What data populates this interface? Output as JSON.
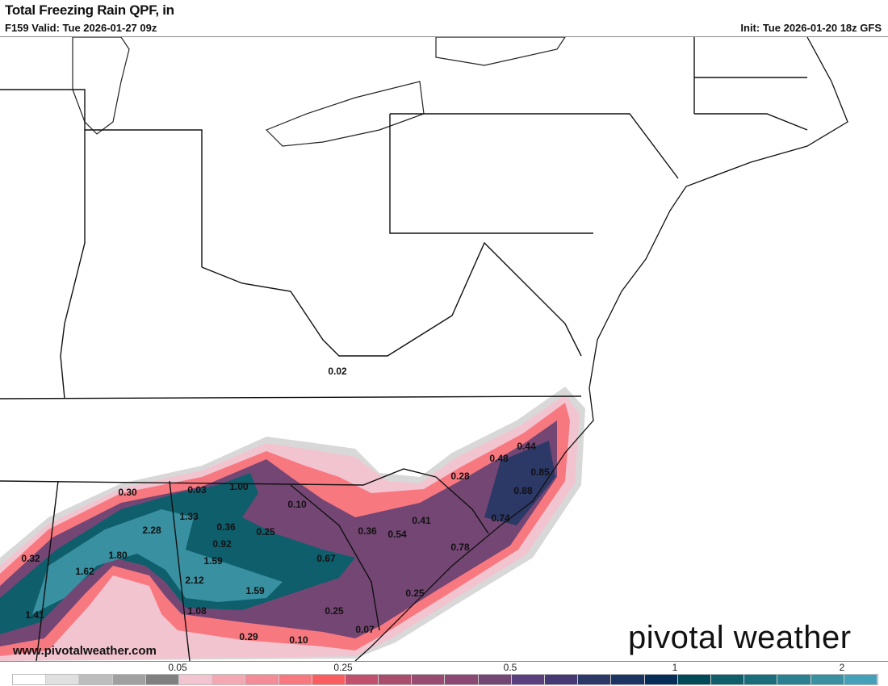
{
  "header": {
    "title": "Total Freezing Rain QPF, in",
    "valid": "F159 Valid: Tue 2026-01-27 09z",
    "init": "Init: Tue 2026-01-20 18z GFS"
  },
  "watermark": "www.pivotalweather.com",
  "logo": "pivotal weather",
  "colorbar": {
    "colors": [
      "#ffffff",
      "#e0e0e0",
      "#bdbdbd",
      "#a0a0a0",
      "#808080",
      "#f2c4d0",
      "#f4a8b4",
      "#f48c98",
      "#f87880",
      "#fa5c60",
      "#c0506e",
      "#a84e6c",
      "#984a70",
      "#8a4872",
      "#744674",
      "#5a3e7e",
      "#463872",
      "#2c3866",
      "#1c3462",
      "#062c58",
      "#004a58",
      "#0e5e6c",
      "#1a6e7c",
      "#2a8090",
      "#3890a0",
      "#44a0b8"
    ],
    "ticks": [
      "0.05",
      "0.25",
      "0.5",
      "1",
      "2"
    ]
  },
  "labels": [
    "0.02",
    "0.44",
    "0.48",
    "0.85",
    "0.28",
    "0.88",
    "0.30",
    "0.03",
    "1.00",
    "0.10",
    "0.74",
    "0.41",
    "1.33",
    "0.36",
    "0.25",
    "0.36",
    "0.54",
    "2.28",
    "0.92",
    "0.78",
    "0.32",
    "1.80",
    "0.67",
    "1.59",
    "1.62",
    "2.12",
    "1.59",
    "0.25",
    "1.08",
    "0.25",
    "1.41",
    "0.07",
    "0.29",
    "0.10"
  ]
}
